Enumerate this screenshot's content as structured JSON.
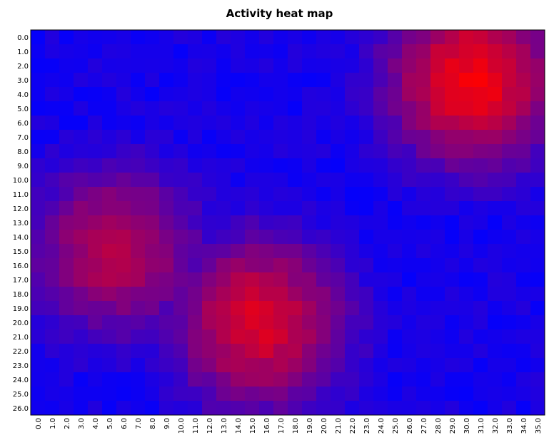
{
  "chart_data": {
    "type": "heatmap",
    "title": "Activity heat map",
    "xlabel": "",
    "ylabel": "",
    "x_labels": [
      "0.0",
      "1.0",
      "2.0",
      "3.0",
      "4.0",
      "5.0",
      "6.0",
      "7.0",
      "8.0",
      "9.0",
      "10.0",
      "11.0",
      "12.0",
      "13.0",
      "14.0",
      "15.0",
      "16.0",
      "17.0",
      "18.0",
      "19.0",
      "20.0",
      "21.0",
      "22.0",
      "23.0",
      "24.0",
      "25.0",
      "26.0",
      "27.0",
      "28.0",
      "29.0",
      "30.0",
      "31.0",
      "32.0",
      "33.0",
      "34.0",
      "35.0"
    ],
    "y_labels": [
      "0.0",
      "1.0",
      "2.0",
      "3.0",
      "4.0",
      "5.0",
      "6.0",
      "7.0",
      "8.0",
      "9.0",
      "10.0",
      "11.0",
      "12.0",
      "13.0",
      "14.0",
      "15.0",
      "16.0",
      "17.0",
      "18.0",
      "19.0",
      "20.0",
      "21.0",
      "22.0",
      "23.0",
      "24.0",
      "25.0",
      "26.0"
    ],
    "color_low": "#0000ff",
    "color_high": "#ff0000",
    "legend": "none",
    "grid": false,
    "hotspots": [
      {
        "x": 30.5,
        "y": 3.0,
        "peak": 0.95
      },
      {
        "x": 15.5,
        "y": 20.0,
        "peak": 0.85
      },
      {
        "x": 5.5,
        "y": 15.0,
        "peak": 0.7
      }
    ]
  }
}
